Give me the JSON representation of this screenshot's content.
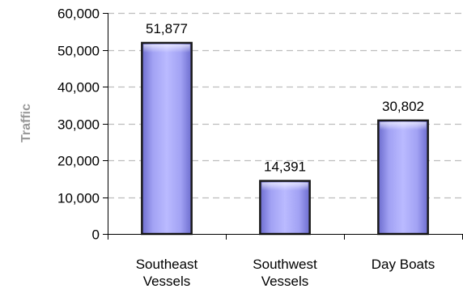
{
  "chart_data": {
    "type": "bar",
    "categories": [
      [
        "Southeast",
        "Vessels"
      ],
      [
        "Southwest",
        "Vessels"
      ],
      [
        "Day Boats"
      ]
    ],
    "values": [
      51877,
      14391,
      30802
    ],
    "value_labels": [
      "51,877",
      "14,391",
      "30,802"
    ],
    "ylabel": "Traffic",
    "xlabel": "",
    "title": "",
    "ylim": [
      0,
      60000
    ],
    "yticks": [
      0,
      10000,
      20000,
      30000,
      40000,
      50000,
      60000
    ],
    "ytick_labels": [
      "0",
      "10,000",
      "20,000",
      "30,000",
      "40,000",
      "50,000",
      "60,000"
    ],
    "grid": true,
    "legend": "none",
    "bar_color": "#9999ff"
  }
}
